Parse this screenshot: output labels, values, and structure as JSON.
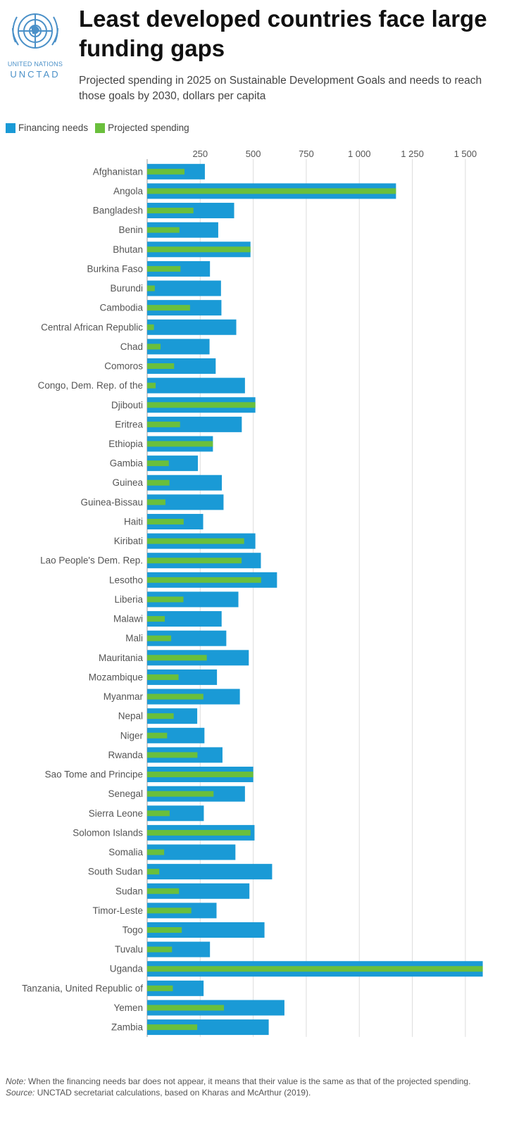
{
  "logo": {
    "icon": "un-emblem-icon",
    "line1": "UNITED NATIONS",
    "line2": "UNCTAD",
    "color": "#4a90c8"
  },
  "title": "Least developed countries face large funding gaps",
  "subtitle": "Projected spending in 2025 on Sustainable Development Goals and needs to reach those goals by 2030, dollars per capita",
  "legend": {
    "needs": "Financing needs",
    "spending": "Projected spending"
  },
  "colors": {
    "needs": "#1a9ad6",
    "spending": "#6abf3c",
    "grid": "#dddddd"
  },
  "chart_data": {
    "type": "bar",
    "orientation": "horizontal",
    "xlim": [
      0,
      1600
    ],
    "xticks": [
      250,
      500,
      750,
      1000,
      1250,
      1500
    ],
    "xtick_labels": [
      "250",
      "500",
      "750",
      "1 000",
      "1 250",
      "1 500"
    ],
    "grid": true,
    "legend_position": "top-left",
    "categories": [
      "Afghanistan",
      "Angola",
      "Bangladesh",
      "Benin",
      "Bhutan",
      "Burkina Faso",
      "Burundi",
      "Cambodia",
      "Central African Republic",
      "Chad",
      "Comoros",
      "Congo, Dem. Rep. of the",
      "Djibouti",
      "Eritrea",
      "Ethiopia",
      "Gambia",
      "Guinea",
      "Guinea-Bissau",
      "Haiti",
      "Kiribati",
      "Lao People's Dem. Rep.",
      "Lesotho",
      "Liberia",
      "Malawi",
      "Mali",
      "Mauritania",
      "Mozambique",
      "Myanmar",
      "Nepal",
      "Niger",
      "Rwanda",
      "Sao Tome and Principe",
      "Senegal",
      "Sierra Leone",
      "Solomon Islands",
      "Somalia",
      "South Sudan",
      "Sudan",
      "Timor-Leste",
      "Togo",
      "Tuvalu",
      "Uganda",
      "Tanzania, United Republic of",
      "Yemen",
      "Zambia"
    ],
    "series": [
      {
        "name": "Financing needs",
        "values": [
          272,
          1173,
          410,
          335,
          487,
          296,
          348,
          350,
          420,
          294,
          323,
          461,
          510,
          446,
          310,
          239,
          352,
          360,
          264,
          510,
          536,
          612,
          430,
          351,
          373,
          479,
          329,
          437,
          236,
          270,
          355,
          500,
          461,
          267,
          506,
          416,
          589,
          482,
          327,
          553,
          296,
          1582,
          266,
          647,
          573
        ]
      },
      {
        "name": "Projected spending",
        "values": [
          176,
          1173,
          218,
          152,
          487,
          157,
          36,
          202,
          32,
          63,
          127,
          40,
          510,
          155,
          310,
          102,
          105,
          86,
          172,
          457,
          445,
          537,
          171,
          83,
          113,
          281,
          148,
          265,
          125,
          94,
          237,
          500,
          313,
          106,
          487,
          80,
          57,
          150,
          208,
          163,
          117,
          1582,
          121,
          362,
          236
        ]
      }
    ]
  },
  "footer": {
    "note_label": "Note:",
    "note_text": " When the financing needs bar does not appear, it means that their value is the same as that of the projected spending.",
    "source_label": "Source:",
    "source_text": " UNCTAD secretariat calculations, based on Kharas and McArthur (2019)."
  }
}
